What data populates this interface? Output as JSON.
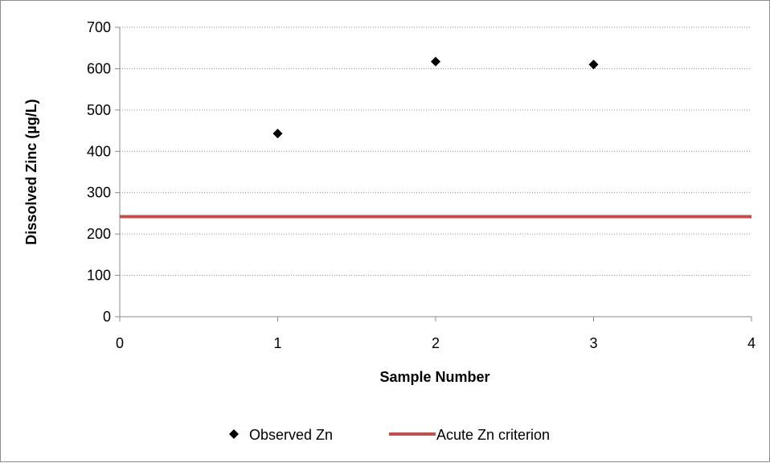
{
  "chart_data": {
    "type": "scatter",
    "xlabel": "Sample Number",
    "ylabel": "Dissolved Zinc (µg/L)",
    "xlim": [
      0,
      4
    ],
    "ylim": [
      0,
      700
    ],
    "x_ticks": [
      "0",
      "1",
      "2",
      "3",
      "4"
    ],
    "y_ticks": [
      "0",
      "100",
      "200",
      "300",
      "400",
      "500",
      "600",
      "700"
    ],
    "grid": "horizontal dotted",
    "legend_position": "bottom",
    "series": [
      {
        "name": "Observed Zn",
        "kind": "scatter",
        "marker": "diamond",
        "color": "#000000",
        "points": [
          {
            "x": 1,
            "y": 443
          },
          {
            "x": 2,
            "y": 617
          },
          {
            "x": 3,
            "y": 610
          }
        ]
      },
      {
        "name": "Acute Zn criterion",
        "kind": "line",
        "color": "#c0504d",
        "points": [
          {
            "x": 0,
            "y": 242
          },
          {
            "x": 4,
            "y": 242
          }
        ]
      }
    ]
  }
}
